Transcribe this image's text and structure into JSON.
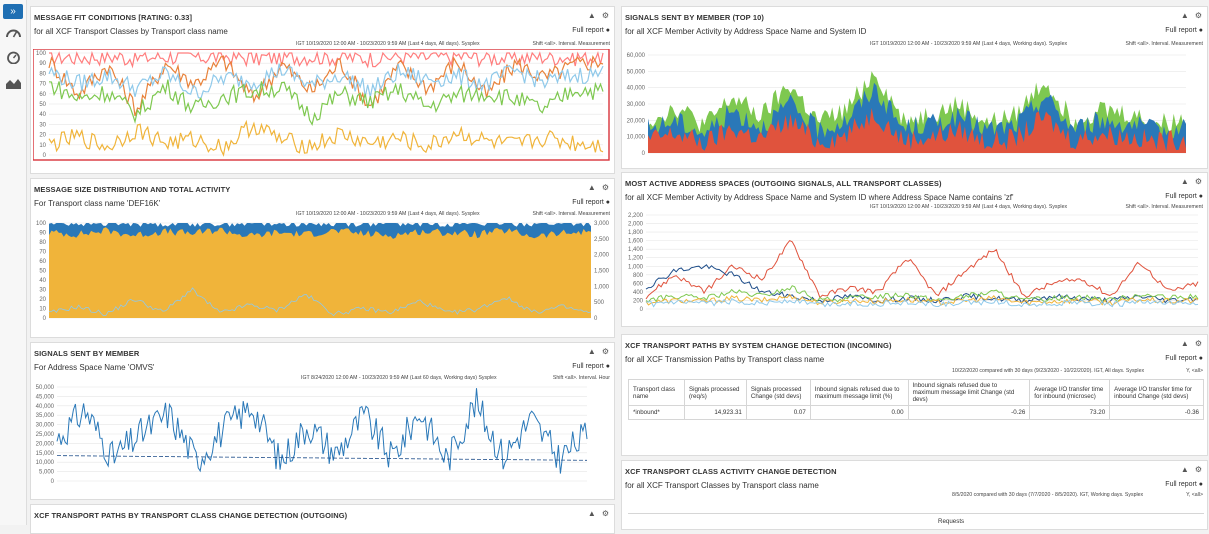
{
  "panels": {
    "fit": {
      "title": "MESSAGE FIT CONDITIONS [RATING: 0.33]",
      "subtitle": "for all XCF Transport Classes by Transport class name",
      "full": "Full report",
      "meta": "IGT 10/19/2020 12:00 AM - 10/23/2020 9:59 AM (Last 4 days, All days). Sysplex",
      "meta2": "Shift <all>. Interval. Measurement",
      "accent": "#d9333a"
    },
    "size": {
      "title": "MESSAGE SIZE DISTRIBUTION AND TOTAL ACTIVITY",
      "subtitle": "For Transport class name 'DEF16K'",
      "full": "Full report",
      "meta": "IGT 10/19/2020 12:00 AM - 10/23/2020 9:59 AM (Last 4 days, All days). Sysplex",
      "meta2": "Shift <all>. Interval. Measurement"
    },
    "sigmem": {
      "title": "SIGNALS SENT BY MEMBER",
      "subtitle": "For Address Space Name 'OMVS'",
      "full": "Full report",
      "meta": "IGT 8/24/2020 12:00 AM - 10/23/2020 9:59 AM (Last 60 days, Working days) Sysplex",
      "meta2": "Shift <all>. Interval. Hour"
    },
    "paths_out": {
      "title": "XCF TRANSPORT PATHS BY TRANSPORT CLASS CHANGE DETECTION (OUTGOING)"
    },
    "top10": {
      "title": "SIGNALS SENT BY MEMBER (TOP 10)",
      "subtitle": "for all XCF Member Activity by Address Space Name and System ID",
      "full": "Full report",
      "meta": "IGT 10/19/2020 12:00 AM - 10/23/2020 9:59 AM (Last 4 days, Working days). Sysplex",
      "meta2": "Shift <all>. Interval. Measurement"
    },
    "active": {
      "title": "MOST ACTIVE ADDRESS SPACES (OUTGOING SIGNALS, ALL TRANSPORT CLASSES)",
      "subtitle": "for all XCF Member Activity by Address Space Name and System ID where Address Space Name contains 'zf'",
      "full": "Full report",
      "meta": "IGT 10/19/2020 12:00 AM - 10/23/2020 9:59 AM (Last 4 days, Working days). Sysplex",
      "meta2": "Shift <all>. Interval. Measurement"
    },
    "paths_in": {
      "title": "XCF TRANSPORT PATHS BY SYSTEM CHANGE DETECTION (INCOMING)",
      "subtitle": "for all XCF Transmission Paths by Transport class name",
      "full": "Full report",
      "meta": "10/22/2020 compared with 30 days (9/23/2020 - 10/22/2020). IGT, All days. Sysplex",
      "meta2": "Y, <all>",
      "headers": [
        "Transport class name",
        "Signals processed (req/s)",
        "Signals processed Change (std devs)",
        "Inbound signals refused due to maximum message limit (%)",
        "Inbound signals refused due to maximum message limit Change (std devs)",
        "Average I/O transfer time for inbound (microsec)",
        "Average I/O transfer time for inbound Change (std devs)"
      ],
      "row": [
        "*inbound*",
        "14,923.31",
        "0.07",
        "0.00",
        "-0.26",
        "73.20",
        "-0.36"
      ]
    },
    "class_act": {
      "title": "XCF TRANSPORT CLASS ACTIVITY CHANGE DETECTION",
      "subtitle": "for all XCF Transport Classes by Transport class name",
      "full": "Full report",
      "meta": "8/5/2020 compared with 30 days (7/7/2020 - 8/5/2020). IGT, Working days. Sysplex",
      "meta2": "Y, <all>",
      "col_label": "Requests"
    }
  },
  "controls": {
    "collapse": "▲",
    "settings": "⚙"
  },
  "chart_data": [
    {
      "type": "line",
      "title": "MESSAGE FIT CONDITIONS [RATING: 0.33]",
      "ylim": [
        0,
        100
      ],
      "yticks": [
        "100",
        "90",
        "80",
        "70",
        "60",
        "50",
        "40",
        "30",
        "20",
        "10",
        "0"
      ],
      "series": [
        {
          "color": "#ff7d7d",
          "values": [
            97,
            96,
            97,
            95,
            97,
            96,
            97,
            95,
            96,
            97,
            96,
            95,
            97,
            96,
            97,
            96,
            95,
            97,
            96,
            97
          ]
        },
        {
          "color": "#e8823a",
          "values": [
            92,
            60,
            88,
            45,
            90,
            70,
            93,
            55,
            89,
            62,
            91,
            48,
            87,
            66,
            92,
            58,
            90,
            75,
            88,
            93
          ]
        },
        {
          "color": "#8fc9ea",
          "values": [
            82,
            70,
            78,
            65,
            80,
            60,
            76,
            72,
            84,
            68,
            79,
            63,
            81,
            74,
            77,
            69,
            83,
            71,
            78,
            80
          ]
        },
        {
          "color": "#7ec850",
          "values": [
            70,
            55,
            62,
            40,
            68,
            45,
            58,
            63,
            66,
            38,
            60,
            52,
            64,
            47,
            59,
            61,
            55,
            44,
            65,
            62
          ]
        },
        {
          "color": "#f0b43a",
          "values": [
            10,
            18,
            8,
            25,
            12,
            15,
            7,
            30,
            14,
            9,
            20,
            11,
            16,
            8,
            22,
            13,
            9,
            17,
            12,
            10
          ]
        }
      ]
    },
    {
      "type": "area",
      "title": "MESSAGE SIZE DISTRIBUTION AND TOTAL ACTIVITY",
      "ylim": [
        0,
        100
      ],
      "yticks": [
        "100",
        "90",
        "80",
        "70",
        "60",
        "50",
        "40",
        "30",
        "20",
        "10",
        "0"
      ],
      "y2ticks": [
        "3,000",
        "2,500",
        "2,000",
        "1,500",
        "1,000",
        "500",
        "0"
      ],
      "series": [
        {
          "color": "#f0b43a",
          "values": [
            90,
            88,
            92,
            87,
            91,
            89,
            93,
            86,
            90,
            88,
            92,
            89,
            87,
            91,
            90,
            88,
            92,
            86,
            89,
            91
          ]
        },
        {
          "color": "#2a78b8",
          "values": [
            100,
            100,
            100,
            100,
            100,
            100,
            100,
            100,
            100,
            100,
            100,
            100,
            100,
            100,
            100,
            100,
            100,
            100,
            100,
            100
          ]
        }
      ]
    },
    {
      "type": "line",
      "title": "SIGNALS SENT BY MEMBER",
      "ylim": [
        0,
        50000
      ],
      "yticks": [
        "50,000",
        "45,000",
        "40,000",
        "35,000",
        "30,000",
        "25,000",
        "20,000",
        "15,000",
        "10,000",
        "5,000",
        "0"
      ],
      "series": [
        {
          "color": "#2a78b8",
          "values": [
            22000,
            38000,
            12000,
            25000,
            36000,
            11000,
            28000,
            40000,
            10000,
            30000,
            14000,
            35000,
            12000,
            37000,
            11000,
            42000,
            13000,
            33000,
            12000,
            25000
          ]
        }
      ]
    },
    {
      "type": "area",
      "title": "SIGNALS SENT BY MEMBER (TOP 10)",
      "ylim": [
        0,
        60000
      ],
      "yticks": [
        "60,000",
        "50,000",
        "40,000",
        "30,000",
        "20,000",
        "10,000",
        "0"
      ],
      "series": [
        {
          "color": "#e0533d",
          "values": [
            8000,
            12000,
            6000,
            15000,
            9000,
            20000,
            7000,
            11000,
            25000,
            8000,
            10000,
            14000,
            7000,
            9000,
            22000,
            8000,
            12000,
            10000,
            7000,
            9000
          ]
        },
        {
          "color": "#2a78b8",
          "values": [
            15000,
            20000,
            12000,
            26000,
            16000,
            30000,
            14000,
            20000,
            40000,
            15000,
            18000,
            22000,
            14000,
            17000,
            35000,
            15000,
            20000,
            18000,
            13000,
            16000
          ]
        },
        {
          "color": "#7ec850",
          "values": [
            20000,
            28000,
            17000,
            34000,
            22000,
            42000,
            19000,
            26000,
            50000,
            20000,
            24000,
            30000,
            18000,
            23000,
            45000,
            20000,
            27000,
            24000,
            18000,
            21000
          ]
        }
      ]
    },
    {
      "type": "line",
      "title": "MOST ACTIVE ADDRESS SPACES (OUTGOING SIGNALS, ALL TRANSPORT CLASSES)",
      "ylim": [
        0,
        2200
      ],
      "yticks": [
        "2,200",
        "2,000",
        "1,800",
        "1,600",
        "1,400",
        "1,200",
        "1,000",
        "800",
        "600",
        "400",
        "200",
        "0"
      ],
      "series": [
        {
          "color": "#e0533d",
          "values": [
            300,
            800,
            400,
            1000,
            700,
            1600,
            300,
            500,
            400,
            1200,
            300,
            900,
            1400,
            300,
            600,
            700,
            300,
            1100,
            400,
            600
          ]
        },
        {
          "color": "#1f4e8a",
          "values": [
            500,
            900,
            1000,
            800,
            400,
            300,
            200,
            300,
            200,
            250,
            200,
            300,
            250,
            200,
            300,
            250,
            200,
            300,
            200,
            250
          ]
        },
        {
          "color": "#7ec850",
          "values": [
            200,
            300,
            250,
            400,
            300,
            500,
            200,
            250,
            300,
            350,
            200,
            300,
            400,
            200,
            250,
            300,
            200,
            350,
            250,
            300
          ]
        },
        {
          "color": "#f0b43a",
          "values": [
            150,
            200,
            180,
            250,
            200,
            300,
            150,
            200,
            180,
            220,
            150,
            200,
            250,
            150,
            180,
            200,
            150,
            220,
            180,
            200
          ]
        },
        {
          "color": "#8fc9ea",
          "values": [
            100,
            150,
            120,
            180,
            140,
            200,
            100,
            130,
            120,
            160,
            100,
            140,
            180,
            100,
            130,
            150,
            100,
            160,
            120,
            140
          ]
        }
      ]
    }
  ]
}
